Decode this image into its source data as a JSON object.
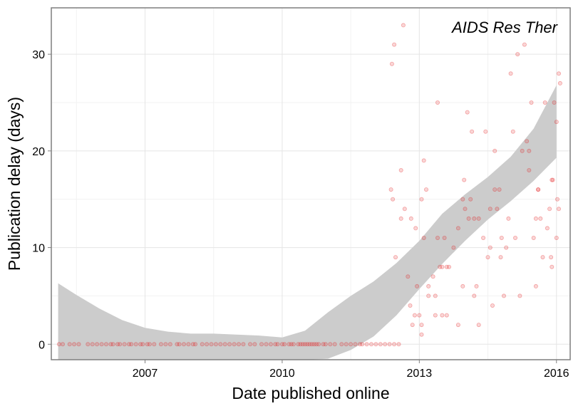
{
  "chart_data": {
    "type": "scatter",
    "title": "",
    "annotation": "AIDS Res Ther",
    "xlabel": "Date published online",
    "ylabel": "Publication delay (days)",
    "xlim": [
      2004.95,
      2016.3
    ],
    "ylim": [
      -1.6,
      34.8
    ],
    "xticks": [
      2007,
      2010,
      2013,
      2016
    ],
    "xtick_labels": [
      "2007",
      "2010",
      "2013",
      "2016"
    ],
    "yticks": [
      0,
      10,
      20,
      30
    ],
    "ytick_labels": [
      "0",
      "10",
      "20",
      "30"
    ],
    "grid": true,
    "legend": "none",
    "point_color": "#e31a1c",
    "band_color": "#cccccc",
    "series": [
      {
        "values": [
          [
            2005.12,
            0
          ],
          [
            2005.2,
            0
          ],
          [
            2005.35,
            0
          ],
          [
            2005.45,
            0
          ],
          [
            2005.55,
            0
          ],
          [
            2005.75,
            0
          ],
          [
            2005.85,
            0
          ],
          [
            2005.95,
            0
          ],
          [
            2006.05,
            0
          ],
          [
            2006.15,
            0
          ],
          [
            2006.25,
            0
          ],
          [
            2006.3,
            0
          ],
          [
            2006.4,
            0
          ],
          [
            2006.45,
            0
          ],
          [
            2006.55,
            0
          ],
          [
            2006.65,
            0
          ],
          [
            2006.7,
            0
          ],
          [
            2006.8,
            0
          ],
          [
            2006.9,
            0
          ],
          [
            2006.95,
            0
          ],
          [
            2007.05,
            0
          ],
          [
            2007.1,
            0
          ],
          [
            2007.2,
            0
          ],
          [
            2007.35,
            0
          ],
          [
            2007.45,
            0
          ],
          [
            2007.55,
            0
          ],
          [
            2007.7,
            0
          ],
          [
            2007.75,
            0
          ],
          [
            2007.85,
            0
          ],
          [
            2007.95,
            0
          ],
          [
            2008.05,
            0
          ],
          [
            2008.1,
            0
          ],
          [
            2008.25,
            0
          ],
          [
            2008.35,
            0
          ],
          [
            2008.45,
            0
          ],
          [
            2008.55,
            0
          ],
          [
            2008.65,
            0
          ],
          [
            2008.75,
            0
          ],
          [
            2008.85,
            0
          ],
          [
            2008.95,
            0
          ],
          [
            2009.05,
            0
          ],
          [
            2009.15,
            0
          ],
          [
            2009.3,
            0
          ],
          [
            2009.4,
            0
          ],
          [
            2009.55,
            0
          ],
          [
            2009.65,
            0
          ],
          [
            2009.75,
            0
          ],
          [
            2009.85,
            0
          ],
          [
            2009.9,
            0
          ],
          [
            2010.0,
            0
          ],
          [
            2010.05,
            0
          ],
          [
            2010.15,
            0
          ],
          [
            2010.2,
            0
          ],
          [
            2010.25,
            0
          ],
          [
            2010.35,
            0
          ],
          [
            2010.4,
            0
          ],
          [
            2010.45,
            0
          ],
          [
            2010.5,
            0
          ],
          [
            2010.55,
            0
          ],
          [
            2010.6,
            0
          ],
          [
            2010.65,
            0
          ],
          [
            2010.7,
            0
          ],
          [
            2010.75,
            0
          ],
          [
            2010.8,
            0
          ],
          [
            2010.9,
            0
          ],
          [
            2010.95,
            0
          ],
          [
            2011.05,
            0
          ],
          [
            2011.15,
            0
          ],
          [
            2011.3,
            0
          ],
          [
            2011.4,
            0
          ],
          [
            2011.5,
            0
          ],
          [
            2011.6,
            0
          ],
          [
            2011.7,
            0
          ],
          [
            2011.75,
            0
          ],
          [
            2011.85,
            0
          ],
          [
            2011.95,
            0
          ],
          [
            2012.05,
            0
          ],
          [
            2012.15,
            0
          ],
          [
            2012.25,
            0
          ],
          [
            2012.35,
            0
          ],
          [
            2012.45,
            0
          ],
          [
            2012.55,
            0
          ],
          [
            2012.4,
            29
          ],
          [
            2012.45,
            31
          ],
          [
            2012.65,
            33
          ],
          [
            2012.6,
            18
          ],
          [
            2012.38,
            16
          ],
          [
            2012.42,
            15
          ],
          [
            2012.6,
            13
          ],
          [
            2012.68,
            14
          ],
          [
            2012.82,
            13
          ],
          [
            2012.92,
            12
          ],
          [
            2012.48,
            9
          ],
          [
            2012.75,
            7
          ],
          [
            2012.8,
            4
          ],
          [
            2012.85,
            2
          ],
          [
            2012.9,
            3
          ],
          [
            2012.95,
            6
          ],
          [
            2013.0,
            3
          ],
          [
            2013.05,
            1
          ],
          [
            2013.05,
            2
          ],
          [
            2013.1,
            19
          ],
          [
            2013.15,
            16
          ],
          [
            2013.05,
            15
          ],
          [
            2013.1,
            11
          ],
          [
            2013.2,
            6
          ],
          [
            2013.2,
            5
          ],
          [
            2013.3,
            7
          ],
          [
            2013.35,
            3
          ],
          [
            2013.35,
            5
          ],
          [
            2013.4,
            25
          ],
          [
            2013.45,
            8
          ],
          [
            2013.5,
            8
          ],
          [
            2013.5,
            3
          ],
          [
            2013.55,
            11
          ],
          [
            2013.6,
            8
          ],
          [
            2013.6,
            3
          ],
          [
            2013.65,
            8
          ],
          [
            2013.75,
            10
          ],
          [
            2013.85,
            2
          ],
          [
            2013.95,
            6
          ],
          [
            2013.95,
            15
          ],
          [
            2013.98,
            17
          ],
          [
            2014.0,
            14
          ],
          [
            2014.05,
            24
          ],
          [
            2014.08,
            13
          ],
          [
            2014.12,
            15
          ],
          [
            2014.15,
            22
          ],
          [
            2014.2,
            5
          ],
          [
            2014.25,
            6
          ],
          [
            2014.3,
            2
          ],
          [
            2014.3,
            13
          ],
          [
            2014.45,
            22
          ],
          [
            2014.5,
            9
          ],
          [
            2014.55,
            14
          ],
          [
            2014.6,
            4
          ],
          [
            2014.65,
            20
          ],
          [
            2014.7,
            14
          ],
          [
            2014.75,
            16
          ],
          [
            2014.78,
            9
          ],
          [
            2014.8,
            11
          ],
          [
            2014.85,
            5
          ],
          [
            2014.9,
            10
          ],
          [
            2014.95,
            13
          ],
          [
            2015.0,
            28
          ],
          [
            2015.05,
            22
          ],
          [
            2015.1,
            11
          ],
          [
            2015.15,
            30
          ],
          [
            2015.2,
            5
          ],
          [
            2015.25,
            20
          ],
          [
            2015.3,
            31
          ],
          [
            2015.35,
            21
          ],
          [
            2015.4,
            18
          ],
          [
            2015.45,
            25
          ],
          [
            2015.5,
            11
          ],
          [
            2015.55,
            6
          ],
          [
            2015.6,
            16
          ],
          [
            2015.65,
            13
          ],
          [
            2015.7,
            9
          ],
          [
            2015.75,
            25
          ],
          [
            2015.8,
            12
          ],
          [
            2015.85,
            14
          ],
          [
            2015.9,
            17
          ],
          [
            2015.9,
            8
          ],
          [
            2015.95,
            25
          ],
          [
            2016.0,
            11
          ],
          [
            2016.02,
            15
          ],
          [
            2016.05,
            14
          ],
          [
            2016.05,
            28
          ],
          [
            2016.08,
            27
          ],
          [
            2016.0,
            23
          ],
          [
            2015.92,
            17
          ],
          [
            2015.88,
            9
          ],
          [
            2015.6,
            16
          ],
          [
            2015.55,
            13
          ],
          [
            2015.4,
            20
          ],
          [
            2014.65,
            16
          ],
          [
            2014.4,
            11
          ],
          [
            2014.55,
            10
          ],
          [
            2014.2,
            13
          ],
          [
            2013.85,
            12
          ],
          [
            2013.4,
            11
          ]
        ]
      }
    ],
    "smooth_band": {
      "x": [
        2005.1,
        2005.5,
        2006.0,
        2006.5,
        2007.0,
        2007.5,
        2008.0,
        2008.5,
        2009.0,
        2009.5,
        2010.0,
        2010.5,
        2011.0,
        2011.5,
        2012.0,
        2012.5,
        2013.0,
        2013.5,
        2014.0,
        2014.5,
        2015.0,
        2015.5,
        2016.0
      ],
      "lower": [
        -1.6,
        -1.6,
        -1.6,
        -1.6,
        -1.6,
        -1.6,
        -1.6,
        -1.6,
        -1.6,
        -1.6,
        -1.6,
        -1.6,
        -1.5,
        -0.6,
        0.8,
        3.0,
        5.7,
        8.3,
        10.7,
        12.9,
        14.8,
        16.9,
        19.3
      ],
      "upper": [
        6.3,
        5.1,
        3.7,
        2.5,
        1.7,
        1.3,
        1.1,
        1.1,
        1.0,
        0.9,
        0.7,
        1.4,
        3.3,
        5.0,
        6.5,
        8.4,
        10.7,
        13.5,
        15.5,
        17.3,
        19.4,
        22.3,
        26.8
      ]
    }
  }
}
